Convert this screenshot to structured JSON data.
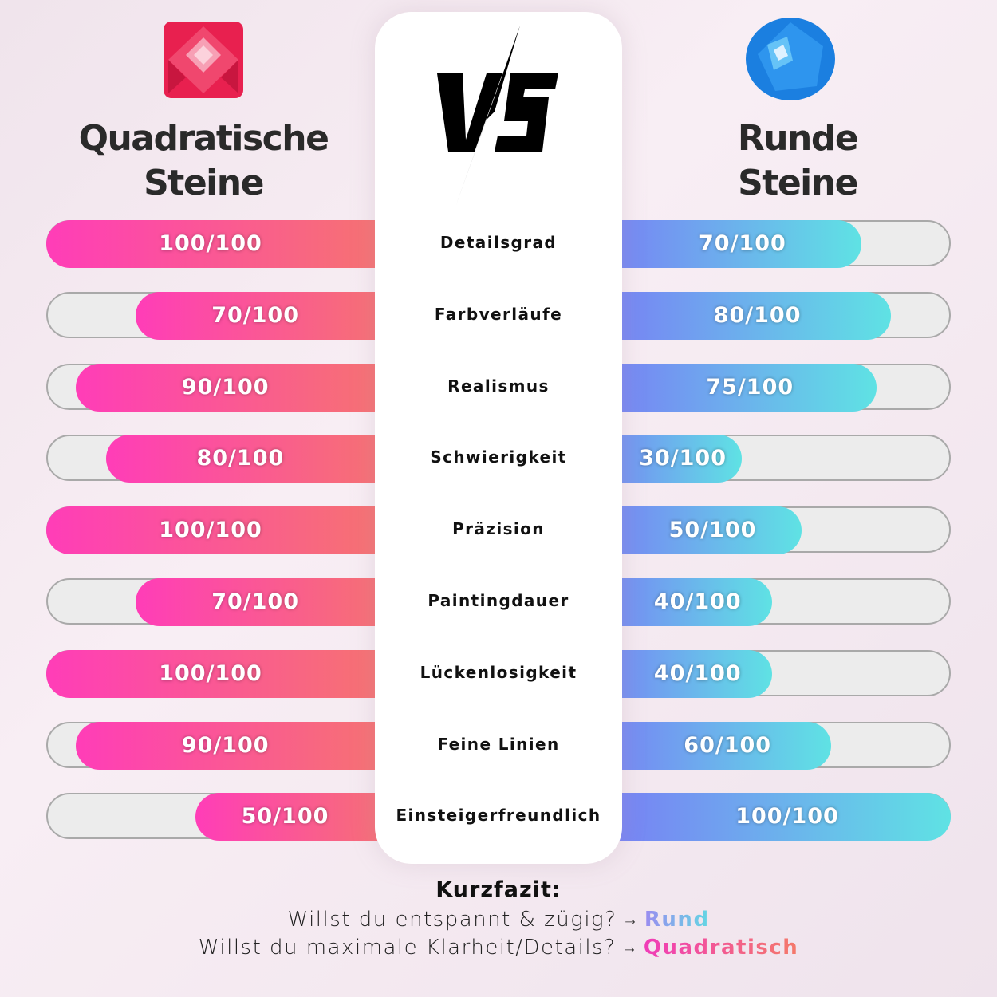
{
  "chart_data": {
    "type": "bar",
    "orientation": "horizontal-diverging",
    "categories": [
      "Detailsgrad",
      "Farbverläufe",
      "Realismus",
      "Schwierigkeit",
      "Präzision",
      "Paintingdauer",
      "Lückenlosigkeit",
      "Feine Linien",
      "Einsteigerfreundlich"
    ],
    "series": [
      {
        "name": "Quadratische Steine",
        "values": [
          100,
          70,
          90,
          80,
          100,
          70,
          100,
          90,
          50
        ],
        "color": "#ff3db8",
        "color_end": "#f5786a"
      },
      {
        "name": "Runde Steine",
        "values": [
          70,
          80,
          75,
          30,
          50,
          40,
          40,
          60,
          100
        ],
        "color": "#7a79f6",
        "color_end": "#5fe2e4"
      }
    ],
    "max": 100,
    "value_suffix": "/100",
    "center_label": "VS"
  },
  "titles": {
    "left_line1": "Quadratische",
    "left_line2": "Steine",
    "right_line1": "Runde",
    "right_line2": "Steine"
  },
  "icons": {
    "left": "pink-square-gem-icon",
    "right": "blue-round-gem-icon",
    "center": "vs-lightning-icon"
  },
  "summary": {
    "title": "Kurzfazit:",
    "line1": "Willst du entspannt & zügig?",
    "line1_highlight": "Rund",
    "line2": "Willst du maximale Klarheit/Details?",
    "line2_highlight": "Quadratisch",
    "arrow": "→"
  }
}
